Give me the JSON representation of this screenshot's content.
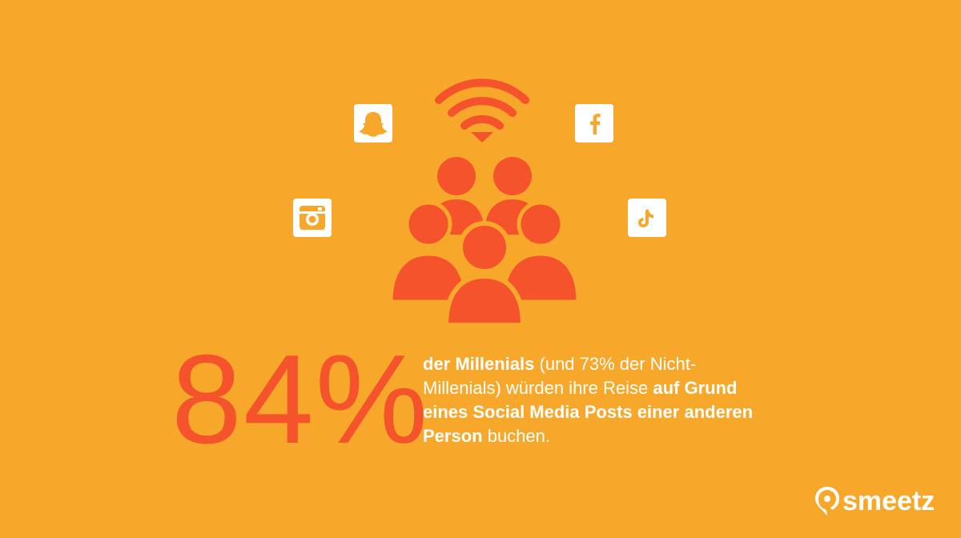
{
  "stat": {
    "value": "84%",
    "line1_bold": "der Millenials",
    "line1_rest": "  (und 73% der Nicht-",
    "line2": "Millenials) würden ihre Reise ",
    "line2_bold": "auf Grund",
    "line3_bold": "eines Social Media Posts einer anderen",
    "line4_bold": "Person",
    "line4_rest": " buchen."
  },
  "logo": {
    "text": "smeetz"
  },
  "icons": [
    "wifi-icon",
    "snapchat-icon",
    "facebook-icon",
    "instagram-icon",
    "tiktok-icon",
    "people-group-icon"
  ],
  "colors": {
    "background": "#F7A82A",
    "accent": "#F4532C",
    "white": "#FFFFFF"
  }
}
